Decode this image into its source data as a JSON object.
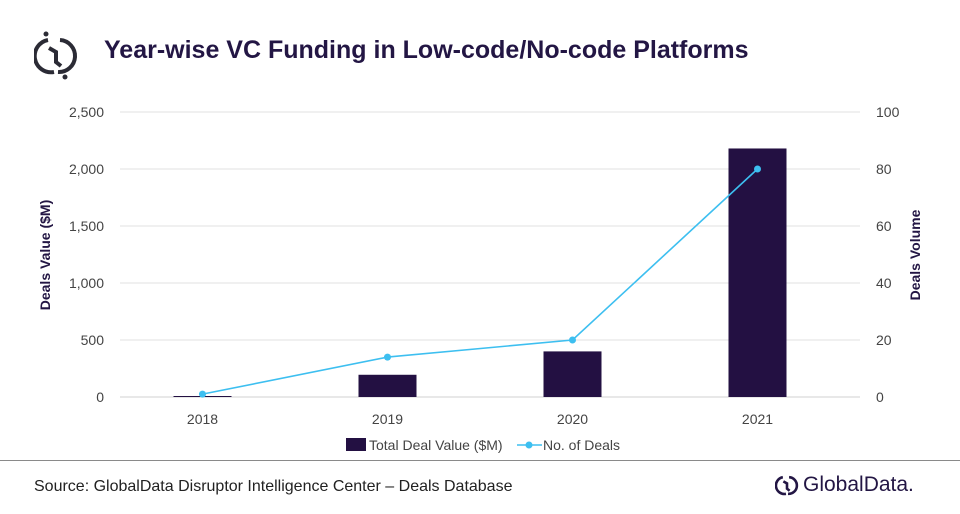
{
  "title": "Year-wise VC Funding in Low-code/No-code Platforms",
  "source": "Source: GlobalData Disruptor Intelligence Center – Deals Database",
  "brand": "GlobalData.",
  "colors": {
    "bar": "#231042",
    "line": "#3dbff0",
    "title": "#231644",
    "grid": "#e0e0e0"
  },
  "chart_data": {
    "type": "bar+line",
    "categories": [
      "2018",
      "2019",
      "2020",
      "2021"
    ],
    "series": [
      {
        "name": "Total Deal Value ($M)",
        "type": "bar",
        "axis": "left",
        "values": [
          5,
          195,
          400,
          2180
        ]
      },
      {
        "name": "No. of Deals",
        "type": "line",
        "axis": "right",
        "values": [
          1,
          14,
          20,
          80
        ]
      }
    ],
    "ylabel": "Deals Value ($M)",
    "y2label": "Deals Volume",
    "ylim": [
      0,
      2500
    ],
    "y2lim": [
      0,
      100
    ],
    "yticks": [
      "0",
      "500",
      "1,000",
      "1,500",
      "2,000",
      "2,500"
    ],
    "y2ticks": [
      "0",
      "20",
      "40",
      "60",
      "80",
      "100"
    ],
    "grid": true,
    "legend": "bottom"
  }
}
